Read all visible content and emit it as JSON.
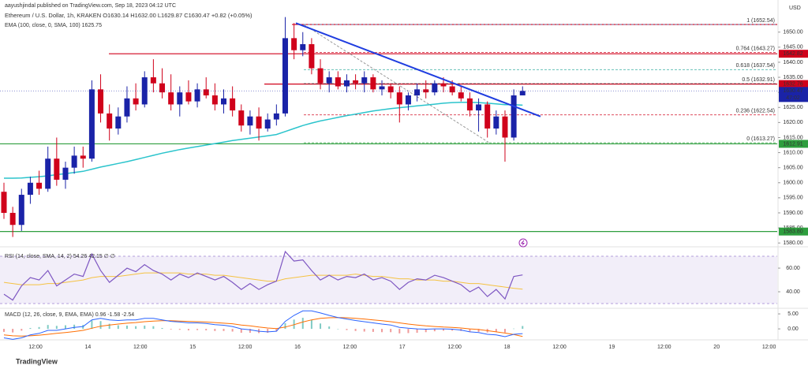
{
  "header": {
    "publisher": "aayushjindal published on TradingView.com, Sep 18, 2023 04:12 UTC",
    "symbol_line": "Ethereum / U.S. Dollar, 1h, KRAKEN O1630.14 H1632.00 L1629.87 C1630.47 +0.82 (+0.05%)",
    "ema_label": "EMA (100, close, 0, SMA, 100) 1625.75",
    "currency": "USD"
  },
  "chart_data": {
    "type": "candlestick",
    "candles": [
      [
        1597,
        1600,
        1588,
        1590
      ],
      [
        1590,
        1592,
        1582,
        1586
      ],
      [
        1586,
        1598,
        1584,
        1596
      ],
      [
        1596,
        1602,
        1593,
        1600
      ],
      [
        1600,
        1604,
        1596,
        1598
      ],
      [
        1598,
        1612,
        1597,
        1608
      ],
      [
        1608,
        1615,
        1599,
        1601
      ],
      [
        1601,
        1607,
        1598,
        1605
      ],
      [
        1605,
        1612,
        1603,
        1609
      ],
      [
        1609,
        1612,
        1605,
        1608
      ],
      [
        1608,
        1634,
        1607,
        1631
      ],
      [
        1631,
        1636,
        1620,
        1623
      ],
      [
        1623,
        1626,
        1614,
        1618
      ],
      [
        1618,
        1625,
        1616,
        1622
      ],
      [
        1622,
        1632,
        1620,
        1628
      ],
      [
        1628,
        1633,
        1624,
        1626
      ],
      [
        1626,
        1637,
        1625,
        1635
      ],
      [
        1635,
        1641,
        1630,
        1633
      ],
      [
        1633,
        1638,
        1628,
        1630
      ],
      [
        1630,
        1636,
        1624,
        1626
      ],
      [
        1626,
        1632,
        1622,
        1630
      ],
      [
        1630,
        1634,
        1626,
        1627
      ],
      [
        1627,
        1633,
        1625,
        1631
      ],
      [
        1631,
        1635,
        1628,
        1629
      ],
      [
        1629,
        1633,
        1624,
        1626
      ],
      [
        1626,
        1631,
        1623,
        1628
      ],
      [
        1628,
        1632,
        1622,
        1624
      ],
      [
        1624,
        1626,
        1617,
        1619
      ],
      [
        1619,
        1624,
        1616,
        1622
      ],
      [
        1622,
        1625,
        1614,
        1618
      ],
      [
        1618,
        1623,
        1617,
        1621
      ],
      [
        1621,
        1626,
        1619,
        1623
      ],
      [
        1623,
        1655,
        1622,
        1648
      ],
      [
        1648,
        1653,
        1641,
        1644
      ],
      [
        1644,
        1650,
        1642,
        1646
      ],
      [
        1646,
        1648,
        1636,
        1638
      ],
      [
        1638,
        1641,
        1631,
        1633
      ],
      [
        1633,
        1637,
        1630,
        1635
      ],
      [
        1635,
        1637,
        1631,
        1632
      ],
      [
        1632,
        1636,
        1630,
        1634
      ],
      [
        1634,
        1636,
        1631,
        1633
      ],
      [
        1633,
        1637,
        1630,
        1635
      ],
      [
        1635,
        1636,
        1630,
        1631
      ],
      [
        1631,
        1634,
        1629,
        1632
      ],
      [
        1632,
        1633,
        1628,
        1630
      ],
      [
        1630,
        1632,
        1620,
        1626
      ],
      [
        1626,
        1630,
        1624,
        1629
      ],
      [
        1629,
        1633,
        1627,
        1631
      ],
      [
        1631,
        1634,
        1628,
        1630
      ],
      [
        1630,
        1634,
        1629,
        1633
      ],
      [
        1633,
        1635,
        1630,
        1632
      ],
      [
        1632,
        1634,
        1629,
        1630
      ],
      [
        1630,
        1632,
        1627,
        1628
      ],
      [
        1628,
        1630,
        1622,
        1624
      ],
      [
        1624,
        1628,
        1617,
        1626
      ],
      [
        1626,
        1627,
        1615,
        1618
      ],
      [
        1618,
        1624,
        1616,
        1622
      ],
      [
        1622,
        1624,
        1607,
        1615
      ],
      [
        1615,
        1631,
        1614,
        1629
      ],
      [
        1629,
        1632,
        1629,
        1630.47
      ]
    ],
    "up_color": "#1a23a8",
    "down_color": "#d0021b",
    "ylim": [
      1579,
      1657
    ],
    "yticks": [
      {
        "value": 1580,
        "label": "1580.00"
      },
      {
        "value": 1585,
        "label": "1585.00"
      },
      {
        "value": 1590,
        "label": "1590.00"
      },
      {
        "value": 1595,
        "label": "1595.00"
      },
      {
        "value": 1600,
        "label": "1600.00"
      },
      {
        "value": 1605,
        "label": "1605.00"
      },
      {
        "value": 1610,
        "label": "1610.00"
      },
      {
        "value": 1615,
        "label": "1615.00"
      },
      {
        "value": 1620,
        "label": "1620.00"
      },
      {
        "value": 1625,
        "label": "1625.00"
      },
      {
        "value": 1630,
        "label": "1630.00"
      },
      {
        "value": 1635,
        "label": "1635.00"
      },
      {
        "value": 1640,
        "label": "1640.00"
      },
      {
        "value": 1645,
        "label": "1645.00"
      },
      {
        "value": 1650,
        "label": "1650.00"
      }
    ],
    "time_labels": [
      "12:00",
      "14",
      "12:00",
      "15",
      "12:00",
      "16",
      "12:00",
      "17",
      "12:00",
      "18",
      "12:00",
      "19",
      "12:00",
      "20",
      "12:00"
    ],
    "ema": {
      "color": "#2bc4cc",
      "values": [
        1601.5,
        1601.5,
        1601.6,
        1601.8,
        1602,
        1602.3,
        1602.7,
        1603,
        1603.4,
        1603.8,
        1604.5,
        1605.2,
        1605.8,
        1606.4,
        1607,
        1607.7,
        1608.4,
        1609.1,
        1609.8,
        1610.4,
        1611,
        1611.5,
        1612,
        1612.5,
        1613,
        1613.5,
        1614,
        1614.4,
        1614.8,
        1615.2,
        1615.6,
        1616,
        1617,
        1618,
        1619,
        1619.8,
        1620.5,
        1621.1,
        1621.7,
        1622.3,
        1622.8,
        1623.3,
        1623.8,
        1624.2,
        1624.6,
        1624.9,
        1625.2,
        1625.5,
        1625.8,
        1626.1,
        1626.4,
        1626.6,
        1626.7,
        1626.7,
        1626.6,
        1626.4,
        1626.2,
        1625.9,
        1625.9,
        1625.75
      ]
    },
    "trend_line": {
      "color": "#1f3de0",
      "from": 1653,
      "to": 1622
    },
    "levels": [
      {
        "value": 1652.54,
        "color": "#d0021b"
      },
      {
        "value": 1642.82,
        "color": "#d0021b"
      },
      {
        "value": 1632.76,
        "color": "#d0021b"
      },
      {
        "value": 1612.91,
        "color": "#2e9e3e"
      },
      {
        "value": 1583.8,
        "color": "#2e9e3e"
      }
    ],
    "fib_levels": [
      {
        "label": "1 (1652.54)",
        "value": 1652.54,
        "color": "#5b9bd5"
      },
      {
        "label": "0.764 (1643.27)",
        "value": 1643.27,
        "color": "#d0021b"
      },
      {
        "label": "0.618 (1637.54)",
        "value": 1637.54,
        "color": "#26a69a"
      },
      {
        "label": "0.5 (1632.91)",
        "value": 1632.91,
        "color": "#444444"
      },
      {
        "label": "0.236 (1622.54)",
        "value": 1622.54,
        "color": "#d0021b"
      },
      {
        "label": "0 (1613.27)",
        "value": 1613.27,
        "color": "#2e9e3e"
      }
    ],
    "price_labels": [
      {
        "value": 1642.82,
        "color": "#d0021b"
      },
      {
        "value": 1632.76,
        "color": "#d0021b"
      },
      {
        "value": 1612.91,
        "color": "#2e9e3e"
      },
      {
        "value": 1583.8,
        "label": "1583.80",
        "color": "#2e9e3e"
      }
    ],
    "last_price": {
      "value": 1630.47,
      "countdown": "47:02",
      "color": "#1a23a8"
    },
    "rsi": {
      "label": "RSI (14, close, SMA, 14, 2) 54.26 42.15 ∅ ∅",
      "ylim": [
        26.7,
        74.7
      ],
      "yticks": [
        {
          "value": 60,
          "label": "60.00"
        },
        {
          "value": 40,
          "label": "40.00"
        }
      ],
      "band": [
        30,
        70
      ],
      "color": "#7e57c2",
      "signal_color": "#f5c242",
      "values": [
        38,
        33,
        45,
        52,
        50,
        58,
        45,
        50,
        55,
        53,
        72,
        58,
        48,
        54,
        60,
        57,
        63,
        58,
        55,
        50,
        55,
        52,
        56,
        53,
        50,
        53,
        48,
        42,
        47,
        42,
        46,
        49,
        74,
        66,
        67,
        58,
        50,
        54,
        50,
        53,
        52,
        55,
        50,
        52,
        49,
        42,
        48,
        51,
        50,
        54,
        52,
        49,
        46,
        40,
        44,
        36,
        42,
        34,
        53,
        54.26
      ],
      "signal": [
        48,
        47,
        46,
        46,
        46,
        47,
        47,
        48,
        49,
        50,
        52,
        53,
        53,
        53,
        54,
        55,
        56,
        56,
        56,
        56,
        56,
        55,
        55,
        55,
        54,
        54,
        53,
        52,
        51,
        50,
        49,
        49,
        51,
        52,
        53,
        54,
        54,
        54,
        54,
        54,
        55,
        54,
        53,
        53,
        52,
        51,
        51,
        50,
        50,
        50,
        49,
        49,
        48,
        47,
        47,
        46,
        45,
        44,
        43,
        42.15
      ]
    },
    "macd": {
      "label": "MACD (12, 26, close, 9, EMA, EMA) 0.96 -1.58 -2.54",
      "ylim": [
        -3.6,
        6.6
      ],
      "yticks": [
        {
          "value": 5,
          "label": "5.00"
        },
        {
          "value": 0,
          "label": "0.00"
        }
      ],
      "color": "#2962ff",
      "signal_color": "#ff6d00",
      "up_color": "#80cbc4",
      "down_color": "#ef9a9a",
      "macd": [
        -3,
        -3.5,
        -3,
        -2,
        -1.5,
        -0.5,
        -0.5,
        0,
        0.5,
        0.8,
        3,
        3.5,
        3,
        2.8,
        3,
        3,
        3.5,
        3.5,
        3,
        2.5,
        2.3,
        2,
        2,
        1.8,
        1.4,
        1.2,
        0.8,
        0,
        -0.3,
        -0.8,
        -1,
        -0.8,
        2.5,
        4.5,
        6,
        6,
        5.3,
        4.5,
        3.8,
        3.3,
        2.8,
        2.4,
        2,
        1.6,
        1.3,
        0.5,
        0.2,
        0,
        -0.1,
        0,
        0,
        -0.1,
        -0.4,
        -1,
        -1.2,
        -1.8,
        -2,
        -2.6,
        -1.8,
        -1.58
      ],
      "signal": [
        -2,
        -2.3,
        -2.4,
        -2.3,
        -2.1,
        -1.8,
        -1.5,
        -1.2,
        -0.9,
        -0.5,
        0.2,
        0.9,
        1.3,
        1.6,
        1.9,
        2.1,
        2.4,
        2.6,
        2.7,
        2.7,
        2.6,
        2.5,
        2.4,
        2.3,
        2.1,
        1.9,
        1.7,
        1.3,
        1,
        0.6,
        0.3,
        0.1,
        0.6,
        1.4,
        2.3,
        3,
        3.5,
        3.7,
        3.8,
        3.7,
        3.5,
        3.3,
        3,
        2.7,
        2.4,
        2,
        1.6,
        1.3,
        1,
        0.8,
        0.6,
        0.5,
        0.3,
        0,
        -0.2,
        -0.6,
        -1,
        -1.4,
        -1.9,
        -2.54
      ],
      "histogram": [
        -1,
        -1.2,
        -0.6,
        0.3,
        0.6,
        1.3,
        1,
        1.2,
        1.4,
        1.3,
        2.8,
        2.6,
        1.7,
        1.2,
        1.1,
        0.9,
        1.1,
        0.9,
        0.3,
        -0.2,
        -0.3,
        -0.5,
        -0.4,
        -0.5,
        -0.7,
        -0.7,
        -0.9,
        -1.3,
        -1.3,
        -1.4,
        -1.3,
        -0.9,
        1.9,
        3.1,
        3.7,
        3,
        1.8,
        0.8,
        0,
        -0.4,
        -0.7,
        -0.9,
        -1,
        -1.1,
        -1.1,
        -1.5,
        -1.4,
        -1.3,
        -1.1,
        -0.8,
        -0.6,
        -0.6,
        -0.7,
        -1,
        -1,
        -1.2,
        -1,
        -1.2,
        0.1,
        0.96
      ]
    }
  },
  "footer": "TradingView"
}
